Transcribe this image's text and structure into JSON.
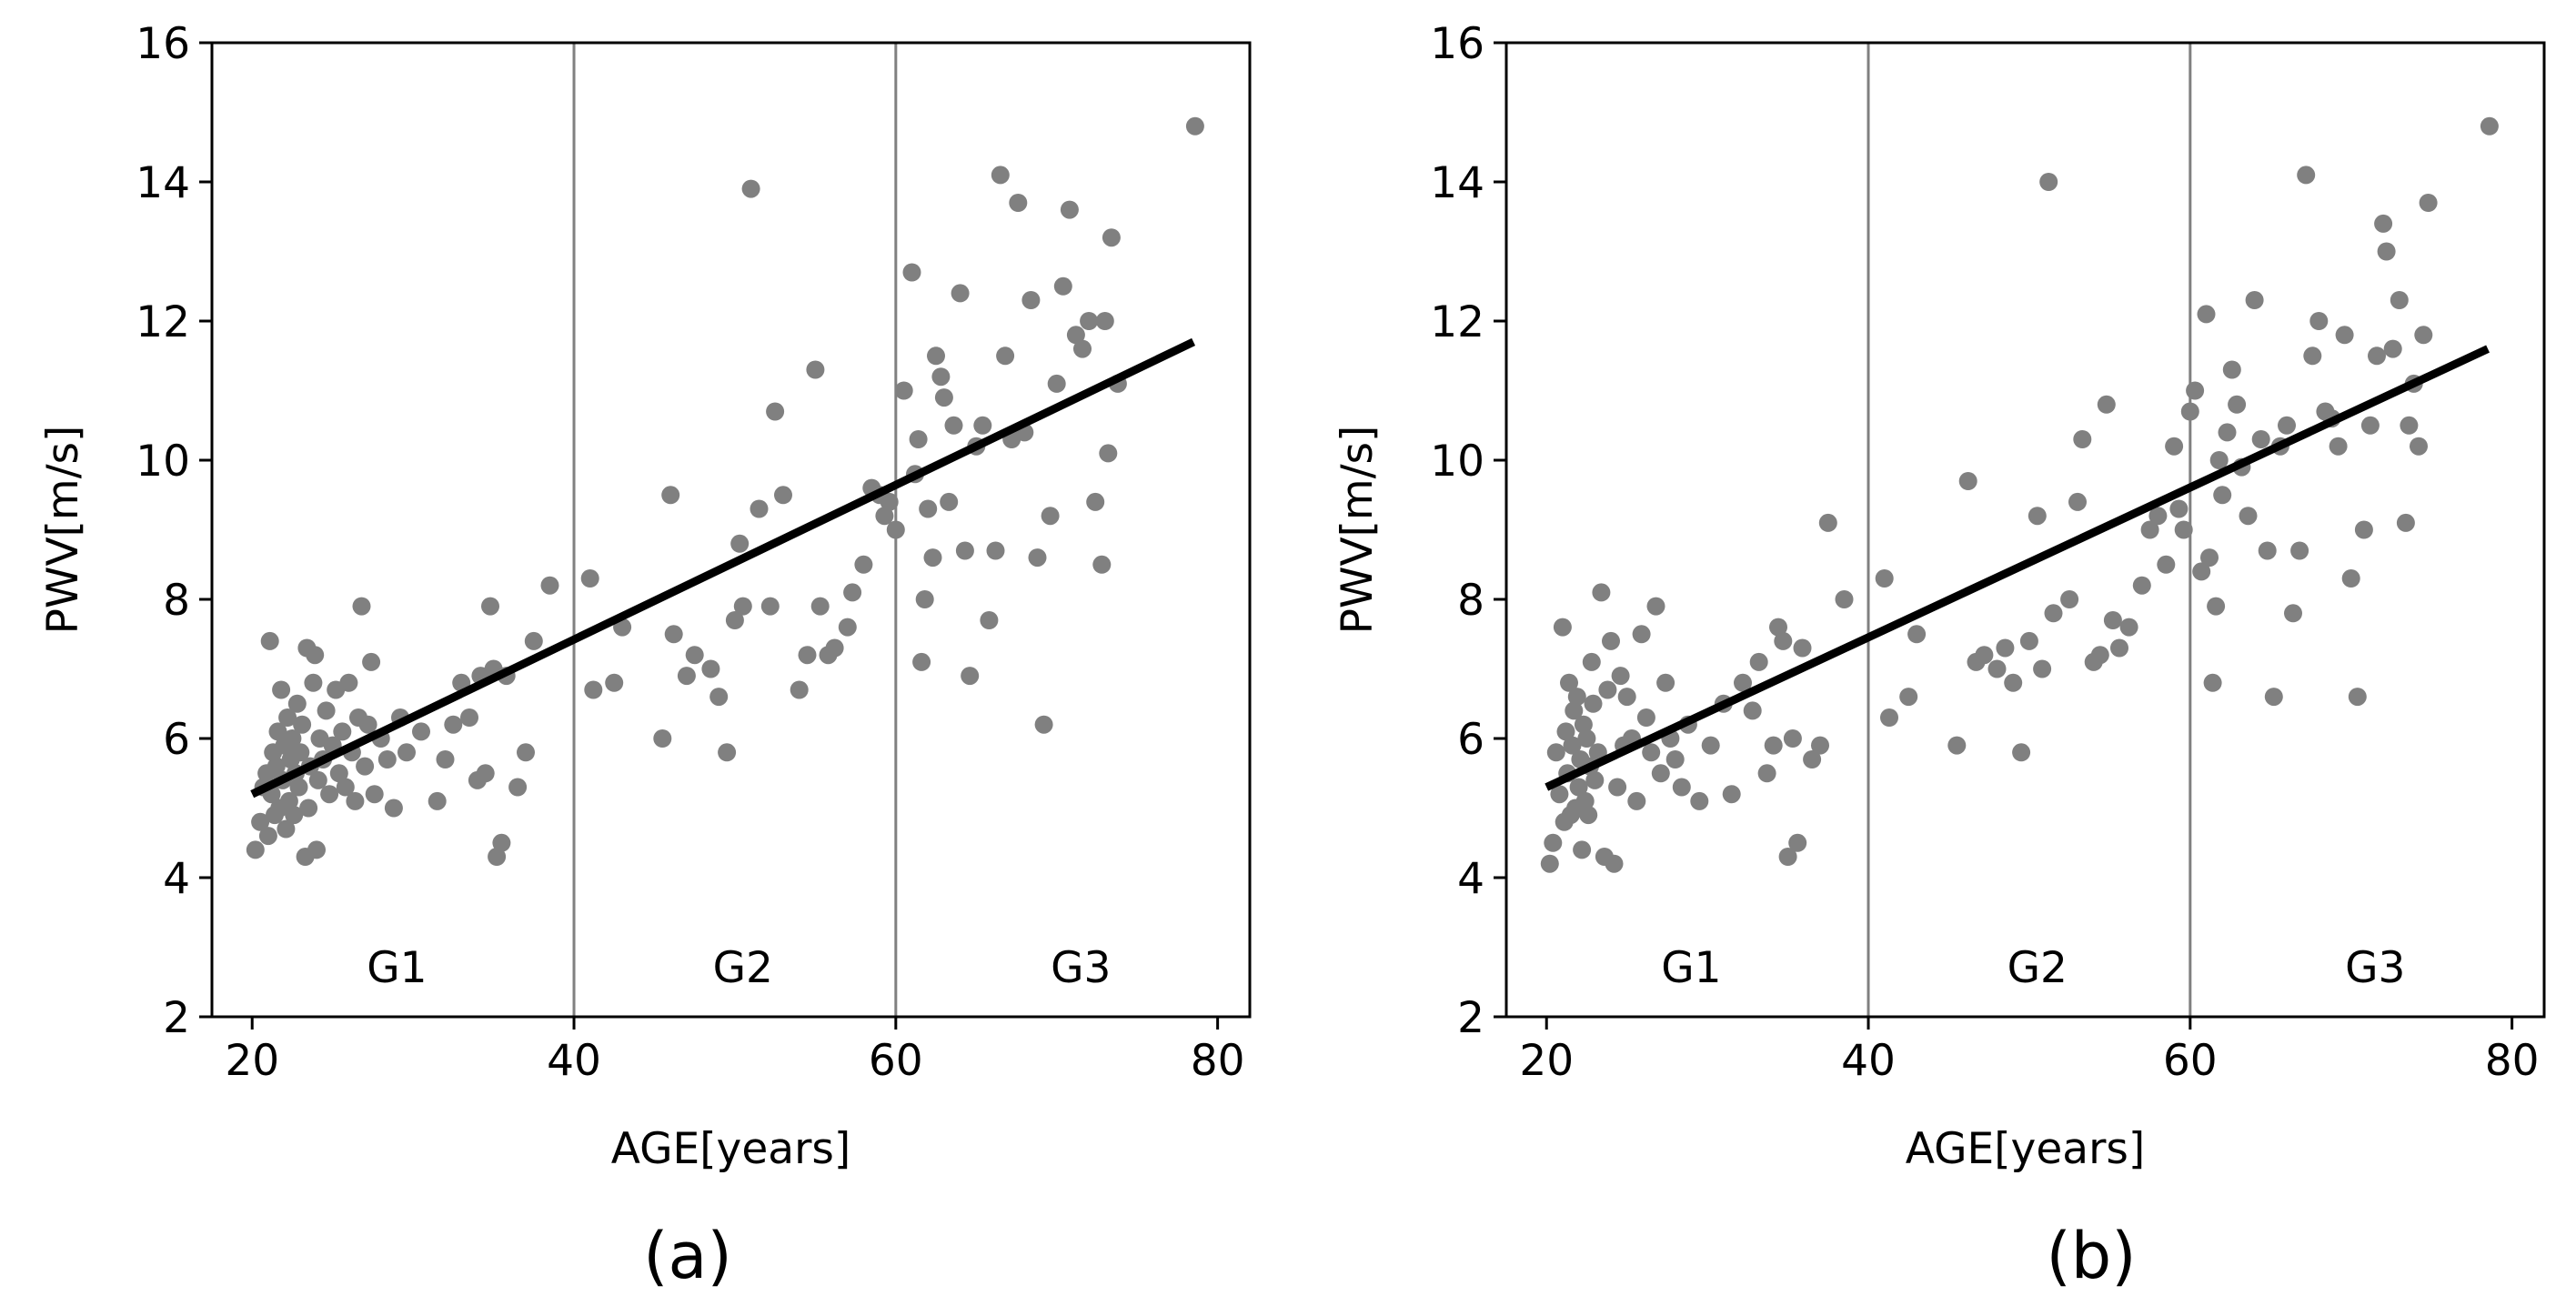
{
  "chart_data": [
    {
      "type": "scatter",
      "panel_label": "(a)",
      "title": "",
      "xlabel": "AGE[years]",
      "ylabel": "PWV[m/s]",
      "xlim": [
        17.5,
        82.0
      ],
      "ylim": [
        2,
        16
      ],
      "xticks": [
        20,
        40,
        60,
        80
      ],
      "yticks": [
        2,
        4,
        6,
        8,
        10,
        12,
        14,
        16
      ],
      "grid": false,
      "vlines": [
        40,
        60
      ],
      "group_labels": [
        {
          "text": "G1",
          "x": 29,
          "y": 2.5
        },
        {
          "text": "G2",
          "x": 50.5,
          "y": 2.5
        },
        {
          "text": "G3",
          "x": 71.5,
          "y": 2.5
        }
      ],
      "marker_color": "#808080",
      "fit_line_color": "#000000",
      "fit_line": {
        "x": [
          20,
          78.5
        ],
        "y": [
          5.2,
          11.7
        ]
      },
      "points": [
        [
          20.2,
          4.4
        ],
        [
          20.5,
          4.8
        ],
        [
          20.7,
          5.3
        ],
        [
          20.9,
          5.5
        ],
        [
          21.0,
          4.6
        ],
        [
          21.1,
          7.4
        ],
        [
          21.2,
          5.2
        ],
        [
          21.3,
          5.8
        ],
        [
          21.4,
          4.9
        ],
        [
          21.5,
          5.6
        ],
        [
          21.6,
          6.1
        ],
        [
          21.7,
          5.0
        ],
        [
          21.8,
          6.7
        ],
        [
          21.9,
          5.4
        ],
        [
          22.0,
          5.9
        ],
        [
          22.1,
          4.7
        ],
        [
          22.2,
          6.3
        ],
        [
          22.3,
          5.1
        ],
        [
          22.4,
          5.7
        ],
        [
          22.5,
          6.0
        ],
        [
          22.6,
          4.9
        ],
        [
          22.7,
          5.5
        ],
        [
          22.8,
          6.5
        ],
        [
          22.9,
          5.3
        ],
        [
          23.0,
          5.8
        ],
        [
          23.1,
          6.2
        ],
        [
          23.3,
          4.3
        ],
        [
          23.4,
          7.3
        ],
        [
          23.5,
          5.0
        ],
        [
          23.6,
          5.6
        ],
        [
          23.8,
          6.8
        ],
        [
          23.9,
          7.2
        ],
        [
          24.0,
          4.4
        ],
        [
          24.1,
          5.4
        ],
        [
          24.2,
          6.0
        ],
        [
          24.4,
          5.7
        ],
        [
          24.6,
          6.4
        ],
        [
          24.8,
          5.2
        ],
        [
          25.0,
          5.9
        ],
        [
          25.2,
          6.7
        ],
        [
          25.4,
          5.5
        ],
        [
          25.6,
          6.1
        ],
        [
          25.8,
          5.3
        ],
        [
          26.0,
          6.8
        ],
        [
          26.2,
          5.8
        ],
        [
          26.4,
          5.1
        ],
        [
          26.6,
          6.3
        ],
        [
          26.8,
          7.9
        ],
        [
          27.0,
          5.6
        ],
        [
          27.2,
          6.2
        ],
        [
          27.4,
          7.1
        ],
        [
          27.6,
          5.2
        ],
        [
          28.0,
          6.0
        ],
        [
          28.4,
          5.7
        ],
        [
          28.8,
          5.0
        ],
        [
          29.2,
          6.3
        ],
        [
          29.6,
          5.8
        ],
        [
          30.5,
          6.1
        ],
        [
          31.5,
          5.1
        ],
        [
          32.0,
          5.7
        ],
        [
          32.5,
          6.2
        ],
        [
          33.0,
          6.8
        ],
        [
          33.5,
          6.3
        ],
        [
          34.0,
          5.4
        ],
        [
          34.2,
          6.9
        ],
        [
          34.5,
          5.5
        ],
        [
          34.8,
          7.9
        ],
        [
          35.0,
          7.0
        ],
        [
          35.2,
          4.3
        ],
        [
          35.5,
          4.5
        ],
        [
          35.8,
          6.9
        ],
        [
          36.5,
          5.3
        ],
        [
          37.0,
          5.8
        ],
        [
          37.5,
          7.4
        ],
        [
          38.5,
          8.2
        ],
        [
          41.0,
          8.3
        ],
        [
          41.2,
          6.7
        ],
        [
          42.5,
          6.8
        ],
        [
          43.0,
          7.6
        ],
        [
          45.5,
          6.0
        ],
        [
          46.0,
          9.5
        ],
        [
          46.2,
          7.5
        ],
        [
          47.0,
          6.9
        ],
        [
          47.5,
          7.2
        ],
        [
          48.5,
          7.0
        ],
        [
          49.0,
          6.6
        ],
        [
          49.5,
          5.8
        ],
        [
          50.0,
          7.7
        ],
        [
          50.3,
          8.8
        ],
        [
          50.5,
          7.9
        ],
        [
          51.0,
          13.9
        ],
        [
          51.5,
          9.3
        ],
        [
          52.2,
          7.9
        ],
        [
          52.5,
          10.7
        ],
        [
          53.0,
          9.5
        ],
        [
          54.0,
          6.7
        ],
        [
          54.5,
          7.2
        ],
        [
          55.0,
          11.3
        ],
        [
          55.3,
          7.9
        ],
        [
          55.8,
          7.2
        ],
        [
          56.2,
          7.3
        ],
        [
          57.0,
          7.6
        ],
        [
          57.3,
          8.1
        ],
        [
          58.0,
          8.5
        ],
        [
          58.5,
          9.6
        ],
        [
          59.0,
          9.5
        ],
        [
          59.3,
          9.2
        ],
        [
          59.6,
          9.4
        ],
        [
          60.0,
          9.0
        ],
        [
          60.5,
          11.0
        ],
        [
          61.0,
          12.7
        ],
        [
          61.2,
          9.8
        ],
        [
          61.4,
          10.3
        ],
        [
          61.6,
          7.1
        ],
        [
          61.8,
          8.0
        ],
        [
          62.0,
          9.3
        ],
        [
          62.3,
          8.6
        ],
        [
          62.5,
          11.5
        ],
        [
          62.8,
          11.2
        ],
        [
          63.0,
          10.9
        ],
        [
          63.3,
          9.4
        ],
        [
          63.6,
          10.5
        ],
        [
          64.0,
          12.4
        ],
        [
          64.3,
          8.7
        ],
        [
          64.6,
          6.9
        ],
        [
          65.0,
          10.2
        ],
        [
          65.4,
          10.5
        ],
        [
          65.8,
          7.7
        ],
        [
          66.2,
          8.7
        ],
        [
          66.5,
          14.1
        ],
        [
          66.8,
          11.5
        ],
        [
          67.2,
          10.3
        ],
        [
          67.6,
          13.7
        ],
        [
          68.0,
          10.4
        ],
        [
          68.4,
          12.3
        ],
        [
          68.8,
          8.6
        ],
        [
          69.2,
          6.2
        ],
        [
          69.6,
          9.2
        ],
        [
          70.0,
          11.1
        ],
        [
          70.4,
          12.5
        ],
        [
          70.8,
          13.6
        ],
        [
          71.2,
          11.8
        ],
        [
          71.6,
          11.6
        ],
        [
          72.0,
          12.0
        ],
        [
          72.4,
          9.4
        ],
        [
          72.8,
          8.5
        ],
        [
          73.0,
          12.0
        ],
        [
          73.2,
          10.1
        ],
        [
          73.4,
          13.2
        ],
        [
          73.8,
          11.1
        ],
        [
          78.6,
          14.8
        ]
      ]
    },
    {
      "type": "scatter",
      "panel_label": "(b)",
      "title": "",
      "xlabel": "AGE[years]",
      "ylabel": "PWV[m/s]",
      "xlim": [
        17.5,
        82.0
      ],
      "ylim": [
        2,
        16
      ],
      "xticks": [
        20,
        40,
        60,
        80
      ],
      "yticks": [
        2,
        4,
        6,
        8,
        10,
        12,
        14,
        16
      ],
      "grid": false,
      "vlines": [
        40,
        60
      ],
      "group_labels": [
        {
          "text": "G1",
          "x": 29,
          "y": 2.5
        },
        {
          "text": "G2",
          "x": 50.5,
          "y": 2.5
        },
        {
          "text": "G3",
          "x": 71.5,
          "y": 2.5
        }
      ],
      "marker_color": "#808080",
      "fit_line_color": "#000000",
      "fit_line": {
        "x": [
          20,
          78.5
        ],
        "y": [
          5.3,
          11.6
        ]
      },
      "points": [
        [
          20.2,
          4.2
        ],
        [
          20.4,
          4.5
        ],
        [
          20.6,
          5.8
        ],
        [
          20.8,
          5.2
        ],
        [
          21.0,
          7.6
        ],
        [
          21.1,
          4.8
        ],
        [
          21.2,
          6.1
        ],
        [
          21.3,
          5.5
        ],
        [
          21.4,
          6.8
        ],
        [
          21.5,
          4.9
        ],
        [
          21.6,
          5.9
        ],
        [
          21.7,
          6.4
        ],
        [
          21.8,
          5.0
        ],
        [
          21.9,
          6.6
        ],
        [
          22.0,
          5.3
        ],
        [
          22.1,
          5.7
        ],
        [
          22.2,
          4.4
        ],
        [
          22.3,
          6.2
        ],
        [
          22.4,
          5.1
        ],
        [
          22.5,
          6.0
        ],
        [
          22.6,
          4.9
        ],
        [
          22.7,
          5.6
        ],
        [
          22.8,
          7.1
        ],
        [
          22.9,
          6.5
        ],
        [
          23.0,
          5.4
        ],
        [
          23.2,
          5.8
        ],
        [
          23.4,
          8.1
        ],
        [
          23.6,
          4.3
        ],
        [
          23.8,
          6.7
        ],
        [
          24.0,
          7.4
        ],
        [
          24.2,
          4.2
        ],
        [
          24.4,
          5.3
        ],
        [
          24.6,
          6.9
        ],
        [
          24.8,
          5.9
        ],
        [
          25.0,
          6.6
        ],
        [
          25.3,
          6.0
        ],
        [
          25.6,
          5.1
        ],
        [
          25.9,
          7.5
        ],
        [
          26.2,
          6.3
        ],
        [
          26.5,
          5.8
        ],
        [
          26.8,
          7.9
        ],
        [
          27.1,
          5.5
        ],
        [
          27.4,
          6.8
        ],
        [
          27.7,
          6.0
        ],
        [
          28.0,
          5.7
        ],
        [
          28.4,
          5.3
        ],
        [
          28.8,
          6.2
        ],
        [
          29.5,
          5.1
        ],
        [
          30.2,
          5.9
        ],
        [
          31.0,
          6.5
        ],
        [
          31.5,
          5.2
        ],
        [
          32.2,
          6.8
        ],
        [
          32.8,
          6.4
        ],
        [
          33.2,
          7.1
        ],
        [
          33.7,
          5.5
        ],
        [
          34.1,
          5.9
        ],
        [
          34.4,
          7.6
        ],
        [
          34.7,
          7.4
        ],
        [
          35.0,
          4.3
        ],
        [
          35.3,
          6.0
        ],
        [
          35.6,
          4.5
        ],
        [
          35.9,
          7.3
        ],
        [
          36.5,
          5.7
        ],
        [
          37.0,
          5.9
        ],
        [
          37.5,
          9.1
        ],
        [
          38.5,
          8.0
        ],
        [
          41.0,
          8.3
        ],
        [
          41.3,
          6.3
        ],
        [
          42.5,
          6.6
        ],
        [
          43.0,
          7.5
        ],
        [
          45.5,
          5.9
        ],
        [
          46.2,
          9.7
        ],
        [
          46.7,
          7.1
        ],
        [
          47.2,
          7.2
        ],
        [
          48.0,
          7.0
        ],
        [
          48.5,
          7.3
        ],
        [
          49.0,
          6.8
        ],
        [
          49.5,
          5.8
        ],
        [
          50.0,
          7.4
        ],
        [
          50.5,
          9.2
        ],
        [
          50.8,
          7.0
        ],
        [
          51.2,
          14.0
        ],
        [
          51.5,
          7.8
        ],
        [
          52.5,
          8.0
        ],
        [
          53.0,
          9.4
        ],
        [
          53.3,
          10.3
        ],
        [
          54.0,
          7.1
        ],
        [
          54.4,
          7.2
        ],
        [
          54.8,
          10.8
        ],
        [
          55.2,
          7.7
        ],
        [
          55.6,
          7.3
        ],
        [
          56.2,
          7.6
        ],
        [
          57.0,
          8.2
        ],
        [
          57.5,
          9.0
        ],
        [
          58.0,
          9.2
        ],
        [
          58.5,
          8.5
        ],
        [
          59.0,
          10.2
        ],
        [
          59.3,
          9.3
        ],
        [
          59.6,
          9.0
        ],
        [
          60.0,
          10.7
        ],
        [
          60.3,
          11.0
        ],
        [
          60.7,
          8.4
        ],
        [
          61.0,
          12.1
        ],
        [
          61.2,
          8.6
        ],
        [
          61.4,
          6.8
        ],
        [
          61.6,
          7.9
        ],
        [
          61.8,
          10.0
        ],
        [
          62.0,
          9.5
        ],
        [
          62.3,
          10.4
        ],
        [
          62.6,
          11.3
        ],
        [
          62.9,
          10.8
        ],
        [
          63.2,
          9.9
        ],
        [
          63.6,
          9.2
        ],
        [
          64.0,
          12.3
        ],
        [
          64.4,
          10.3
        ],
        [
          64.8,
          8.7
        ],
        [
          65.2,
          6.6
        ],
        [
          65.6,
          10.2
        ],
        [
          66.0,
          10.5
        ],
        [
          66.4,
          7.8
        ],
        [
          66.8,
          8.7
        ],
        [
          67.2,
          14.1
        ],
        [
          67.6,
          11.5
        ],
        [
          68.0,
          12.0
        ],
        [
          68.4,
          10.7
        ],
        [
          68.8,
          10.6
        ],
        [
          69.2,
          10.2
        ],
        [
          69.6,
          11.8
        ],
        [
          70.0,
          8.3
        ],
        [
          70.4,
          6.6
        ],
        [
          70.8,
          9.0
        ],
        [
          71.2,
          10.5
        ],
        [
          71.6,
          11.5
        ],
        [
          72.0,
          13.4
        ],
        [
          72.2,
          13.0
        ],
        [
          72.6,
          11.6
        ],
        [
          73.0,
          12.3
        ],
        [
          73.4,
          9.1
        ],
        [
          73.6,
          10.5
        ],
        [
          73.9,
          11.1
        ],
        [
          74.2,
          10.2
        ],
        [
          74.5,
          11.8
        ],
        [
          74.8,
          13.7
        ],
        [
          78.6,
          14.8
        ]
      ]
    }
  ]
}
